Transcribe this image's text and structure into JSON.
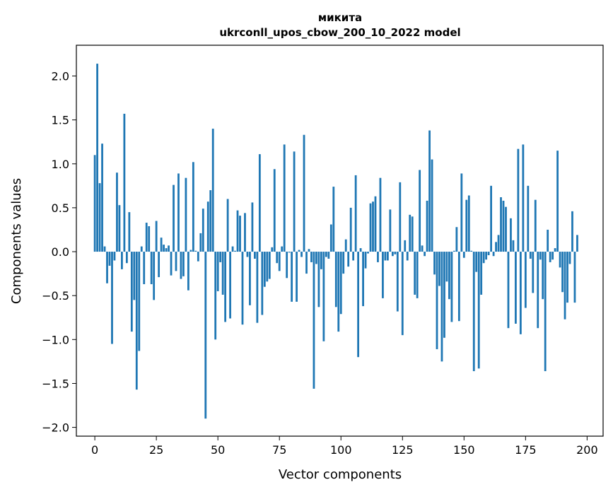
{
  "chart_data": {
    "type": "bar",
    "title": "микита",
    "subtitle": "ukrconll_upos_cbow_200_10_2022 model",
    "xlabel": "Vector components",
    "ylabel": "Components values",
    "xlim": [
      -7.5,
      206.5
    ],
    "ylim": [
      -2.1,
      2.35
    ],
    "xticks": [
      0,
      25,
      50,
      75,
      100,
      125,
      150,
      175,
      200
    ],
    "yticks": [
      -2.0,
      -1.5,
      -1.0,
      -0.5,
      0.0,
      0.5,
      1.0,
      1.5,
      2.0
    ],
    "ytick_labels": [
      "−2.0",
      "−1.5",
      "−1.0",
      "−0.5",
      "0.0",
      "0.5",
      "1.0",
      "1.5",
      "2.0"
    ],
    "grid": false,
    "bar_color": "#1f77b4",
    "values": [
      1.1,
      2.14,
      0.78,
      1.23,
      0.06,
      -0.36,
      -0.16,
      -1.05,
      -0.1,
      0.9,
      0.53,
      -0.2,
      1.57,
      -0.13,
      0.45,
      -0.91,
      -0.55,
      -1.57,
      -1.13,
      0.06,
      -0.37,
      0.33,
      0.29,
      -0.37,
      -0.55,
      0.35,
      -0.29,
      0.16,
      0.08,
      0.04,
      0.07,
      -0.27,
      0.76,
      -0.22,
      0.89,
      -0.31,
      -0.28,
      0.84,
      -0.44,
      0.02,
      1.02,
      0.01,
      -0.11,
      0.21,
      0.49,
      -1.9,
      0.57,
      0.7,
      1.4,
      -1.0,
      -0.45,
      -0.12,
      -0.49,
      -0.8,
      0.6,
      -0.76,
      0.06,
      0.01,
      0.47,
      0.41,
      -0.83,
      0.44,
      -0.06,
      -0.61,
      0.56,
      -0.08,
      -0.81,
      1.11,
      -0.72,
      -0.4,
      -0.34,
      -0.31,
      0.05,
      0.94,
      -0.13,
      -0.22,
      0.06,
      1.22,
      -0.3,
      -0.01,
      -0.57,
      1.14,
      -0.57,
      0.02,
      -0.06,
      1.33,
      -0.25,
      0.03,
      -0.12,
      -1.56,
      -0.14,
      -0.63,
      -0.2,
      -1.02,
      -0.06,
      -0.08,
      0.31,
      0.74,
      -0.63,
      -0.91,
      -0.71,
      -0.25,
      0.14,
      -0.17,
      0.5,
      -0.1,
      0.87,
      -1.2,
      0.04,
      -0.62,
      -0.19,
      -0.02,
      0.55,
      0.57,
      0.63,
      -0.12,
      0.84,
      -0.53,
      -0.1,
      -0.1,
      0.48,
      -0.05,
      -0.03,
      -0.68,
      0.79,
      -0.95,
      0.13,
      -0.1,
      0.42,
      0.4,
      -0.49,
      -0.53,
      0.93,
      0.07,
      -0.05,
      0.58,
      1.38,
      1.05,
      -0.26,
      -1.11,
      -0.39,
      -1.25,
      -0.98,
      -0.34,
      -0.54,
      -0.8,
      0.01,
      0.28,
      -0.79,
      0.89,
      -0.07,
      0.59,
      0.64,
      0.01,
      -1.36,
      -0.23,
      -1.33,
      -0.49,
      -0.13,
      -0.09,
      -0.04,
      0.75,
      -0.05,
      0.11,
      0.19,
      0.62,
      0.58,
      0.51,
      -0.87,
      0.38,
      0.13,
      -0.82,
      1.17,
      -0.94,
      1.22,
      -0.64,
      0.75,
      -0.08,
      -0.47,
      0.59,
      -0.87,
      -0.09,
      -0.54,
      -1.36,
      0.25,
      -0.12,
      -0.09,
      0.04,
      1.15,
      -0.18,
      -0.46,
      -0.77,
      -0.58,
      -0.14,
      0.46,
      -0.58,
      0.19
    ]
  }
}
